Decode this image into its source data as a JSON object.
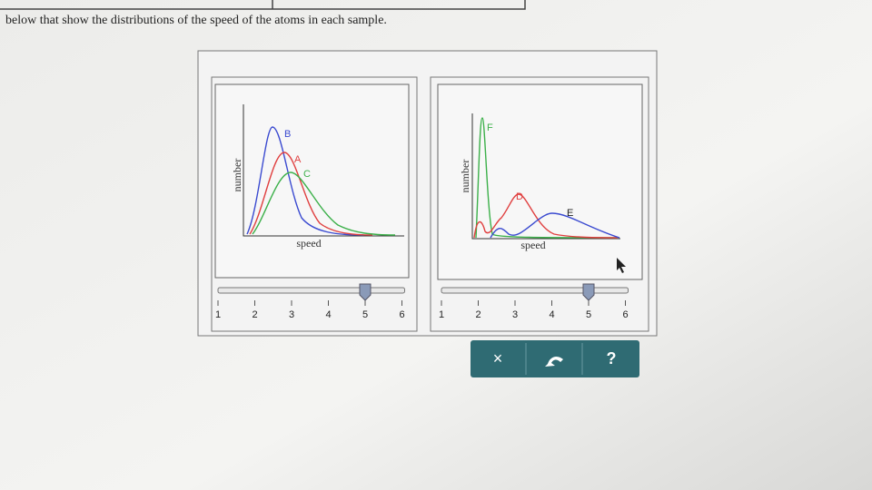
{
  "instruction": "below that show the distributions of the speed of the atoms in each sample.",
  "panels": [
    {
      "y_label": "number",
      "x_label": "speed",
      "curve_labels": [
        "B",
        "A",
        "C"
      ],
      "slider": {
        "value": 5,
        "ticks": [
          1,
          2,
          3,
          4,
          5,
          6
        ]
      }
    },
    {
      "y_label": "number",
      "x_label": "speed",
      "curve_labels": [
        "F",
        "D",
        "E"
      ],
      "slider": {
        "value": 5,
        "ticks": [
          1,
          2,
          3,
          4,
          5,
          6
        ]
      }
    }
  ],
  "buttons": {
    "close": "×",
    "help": "?"
  }
}
